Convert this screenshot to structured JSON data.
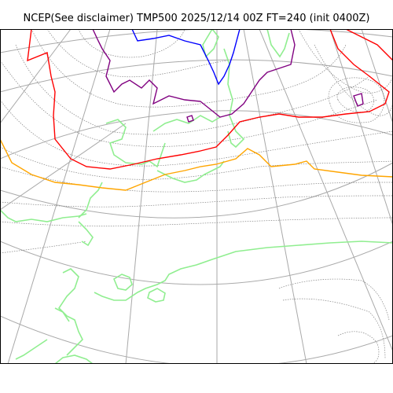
{
  "title": "NCEP(See disclaimer) TMP500 2025/12/14 00Z FT=240 (init 0400Z)",
  "colors": {
    "coastline": "#90ee90",
    "graticule": "#a9a9a9",
    "temp_contour": "#808080",
    "isotherm_blue": "#0000ff",
    "isotherm_purple": "#800080",
    "isotherm_red": "#ff0000",
    "isotherm_orange": "#ffa500"
  },
  "layers": [
    "graticule",
    "coastline",
    "temperature-contours",
    "highlighted-isotherms"
  ]
}
